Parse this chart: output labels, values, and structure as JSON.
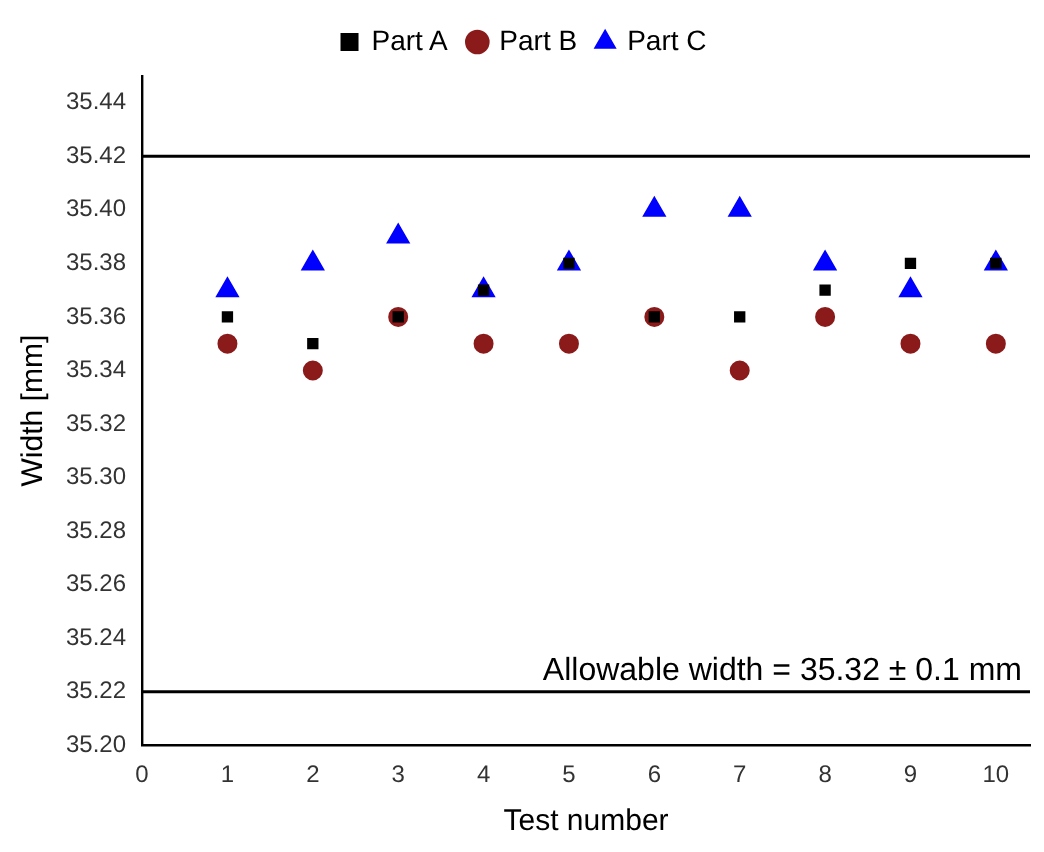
{
  "chart_data": {
    "type": "scatter",
    "xlabel": "Test number",
    "ylabel": "Width [mm]",
    "x": [
      1,
      2,
      3,
      4,
      5,
      6,
      7,
      8,
      9,
      10
    ],
    "series": [
      {
        "name": "Part A",
        "color": "#000000",
        "marker": "square",
        "values": [
          35.36,
          35.35,
          35.36,
          35.37,
          35.38,
          35.36,
          35.36,
          35.37,
          35.38,
          35.38
        ]
      },
      {
        "name": "Part B",
        "color": "#8b1a1a",
        "marker": "circle",
        "values": [
          35.35,
          35.34,
          35.36,
          35.35,
          35.35,
          35.36,
          35.34,
          35.36,
          35.35,
          35.35
        ]
      },
      {
        "name": "Part C",
        "color": "#0000ff",
        "marker": "triangle",
        "values": [
          35.37,
          35.38,
          35.39,
          35.37,
          35.38,
          35.4,
          35.4,
          35.38,
          35.37,
          35.38
        ]
      }
    ],
    "xlim": [
      0,
      10.4
    ],
    "xticks": [
      0,
      1,
      2,
      3,
      4,
      5,
      6,
      7,
      8,
      9,
      10
    ],
    "ylim": [
      35.2,
      35.45
    ],
    "yticks": [
      {
        "value": 35.2,
        "label": "35.20"
      },
      35.22,
      35.24,
      35.26,
      35.28,
      {
        "value": 35.3,
        "label": "35.30"
      },
      35.32,
      35.34,
      35.36,
      35.38,
      {
        "value": 35.4,
        "label": "35.40"
      },
      35.42,
      35.44
    ],
    "ref_lines": [
      {
        "axis": "y",
        "value": 35.42,
        "color": "#000000"
      },
      {
        "axis": "y",
        "value": 35.22,
        "color": "#000000"
      }
    ],
    "annotations": [
      "Allowable width = 35.32 ± 0.1 mm"
    ],
    "grid": false,
    "legend": "top"
  }
}
